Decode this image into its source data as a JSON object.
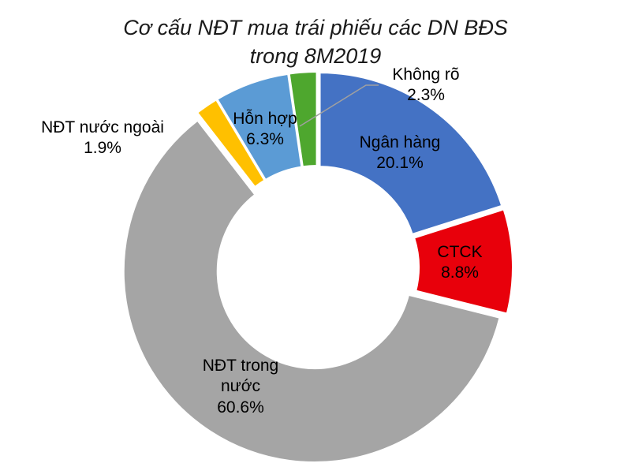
{
  "chart_data": {
    "type": "pie",
    "donut": true,
    "title_lines": [
      "Cơ cấu NĐT mua trái phiếu các DN BĐS",
      "trong 8M2019"
    ],
    "slices": [
      {
        "label": "Ngân hàng",
        "value": 20.1,
        "value_label": "20.1%",
        "color": "#4472C4",
        "label_color": "#000000"
      },
      {
        "label": "CTCK",
        "value": 8.8,
        "value_label": "8.8%",
        "color": "#E8000B",
        "label_color": "#000000"
      },
      {
        "label": "NĐT trong nước",
        "value": 60.6,
        "value_label": "60.6%",
        "color": "#A5A5A5",
        "label_color": "#000000"
      },
      {
        "label": "NĐT nước ngoài",
        "value": 1.9,
        "value_label": "1.9%",
        "color": "#FFC000",
        "label_color": "#000000"
      },
      {
        "label": "Hỗn hợp",
        "value": 6.3,
        "value_label": "6.3%",
        "color": "#5B9BD5",
        "label_color": "#000000"
      },
      {
        "label": "Không rõ",
        "value": 2.3,
        "value_label": "2.3%",
        "color": "#4EA72E",
        "label_color": "#000000"
      }
    ],
    "start_angle_deg": 0,
    "direction": "clockwise",
    "legend": "none"
  }
}
